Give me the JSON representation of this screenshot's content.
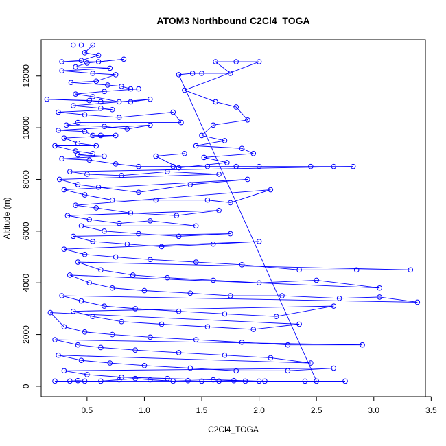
{
  "chart_data": {
    "type": "scatter",
    "title": "ATOM3 Northbound C2Cl4_TOGA",
    "xlabel": "C2Cl4_TOGA",
    "ylabel": "Altitude (m)",
    "xlim": [
      0.1,
      3.45
    ],
    "ylim": [
      -400,
      13400
    ],
    "xticks": [
      0.5,
      1.0,
      1.5,
      2.0,
      2.5,
      3.0,
      3.5
    ],
    "xtick_labels": [
      "0.5",
      "1.0",
      "1.5",
      "2.0",
      "2.5",
      "3.0",
      "3.5"
    ],
    "yticks": [
      0,
      2000,
      4000,
      6000,
      8000,
      10000,
      12000
    ],
    "ytick_labels": [
      "0",
      "2000",
      "4000",
      "6000",
      "8000",
      "10000",
      "12000"
    ],
    "grid": false,
    "legend": "none",
    "style": "points connected by lines (open circles)",
    "color": "#0000ff",
    "series": [
      {
        "points": [
          [
            0.38,
            13200
          ],
          [
            0.45,
            13200
          ],
          [
            0.55,
            13200
          ],
          [
            0.48,
            12900
          ],
          [
            0.6,
            12800
          ],
          [
            0.45,
            12600
          ],
          [
            0.28,
            12550
          ],
          [
            0.6,
            12550
          ],
          [
            0.82,
            12650
          ],
          [
            0.5,
            12500
          ],
          [
            0.4,
            12350
          ],
          [
            0.7,
            12300
          ],
          [
            0.28,
            12200
          ],
          [
            0.55,
            12100
          ],
          [
            0.75,
            12050
          ],
          [
            0.58,
            11800
          ],
          [
            0.36,
            11750
          ],
          [
            0.68,
            11650
          ],
          [
            0.8,
            11600
          ],
          [
            0.88,
            11500
          ],
          [
            0.95,
            11500
          ],
          [
            0.65,
            11400
          ],
          [
            0.4,
            11300
          ],
          [
            0.55,
            11200
          ],
          [
            0.78,
            11000
          ],
          [
            0.15,
            11100
          ],
          [
            0.52,
            11050
          ],
          [
            0.62,
            11000
          ],
          [
            0.88,
            11000
          ],
          [
            1.05,
            11100
          ],
          [
            0.38,
            10850
          ],
          [
            0.62,
            10750
          ],
          [
            0.72,
            10700
          ],
          [
            0.25,
            10600
          ],
          [
            0.48,
            10500
          ],
          [
            0.78,
            10400
          ],
          [
            1.25,
            10600
          ],
          [
            1.32,
            10200
          ],
          [
            0.42,
            10200
          ],
          [
            0.32,
            10100
          ],
          [
            0.65,
            10050
          ],
          [
            0.85,
            9950
          ],
          [
            1.05,
            10100
          ],
          [
            0.25,
            9900
          ],
          [
            0.48,
            9850
          ],
          [
            0.55,
            9700
          ],
          [
            0.62,
            9700
          ],
          [
            0.75,
            9700
          ],
          [
            0.3,
            9600
          ],
          [
            0.42,
            9400
          ],
          [
            0.58,
            9300
          ],
          [
            0.22,
            9300
          ],
          [
            0.4,
            9100
          ],
          [
            0.55,
            9000
          ],
          [
            0.42,
            8950
          ],
          [
            0.65,
            8900
          ],
          [
            0.28,
            8800
          ],
          [
            0.52,
            8750
          ],
          [
            0.75,
            8600
          ],
          [
            0.95,
            8500
          ],
          [
            1.25,
            8500
          ],
          [
            1.55,
            8500
          ],
          [
            1.8,
            8500
          ],
          [
            2.0,
            8500
          ],
          [
            2.45,
            8500
          ],
          [
            2.65,
            8500
          ],
          [
            2.82,
            8500
          ],
          [
            0.35,
            8300
          ],
          [
            0.5,
            8200
          ],
          [
            0.8,
            8150
          ],
          [
            1.2,
            8300
          ],
          [
            1.65,
            8200
          ],
          [
            0.26,
            8000
          ],
          [
            0.42,
            7800
          ],
          [
            0.6,
            7700
          ],
          [
            0.95,
            7500
          ],
          [
            1.4,
            7800
          ],
          [
            1.9,
            8000
          ],
          [
            0.3,
            7600
          ],
          [
            0.48,
            7400
          ],
          [
            0.72,
            7200
          ],
          [
            1.1,
            7200
          ],
          [
            1.55,
            7200
          ],
          [
            1.75,
            7100
          ],
          [
            2.1,
            7600
          ],
          [
            0.4,
            7000
          ],
          [
            0.58,
            6900
          ],
          [
            0.88,
            6700
          ],
          [
            1.28,
            6600
          ],
          [
            1.65,
            6800
          ],
          [
            0.33,
            6600
          ],
          [
            0.52,
            6450
          ],
          [
            0.78,
            6300
          ],
          [
            1.05,
            6400
          ],
          [
            1.45,
            6200
          ],
          [
            0.45,
            6200
          ],
          [
            0.65,
            6000
          ],
          [
            0.95,
            5900
          ],
          [
            1.3,
            5800
          ],
          [
            1.75,
            5900
          ],
          [
            0.38,
            5800
          ],
          [
            0.55,
            5600
          ],
          [
            0.85,
            5500
          ],
          [
            1.15,
            5400
          ],
          [
            1.6,
            5500
          ],
          [
            2.0,
            5600
          ],
          [
            0.3,
            5300
          ],
          [
            0.48,
            5100
          ],
          [
            0.75,
            5000
          ],
          [
            1.05,
            4900
          ],
          [
            1.45,
            4800
          ],
          [
            1.85,
            4700
          ],
          [
            2.35,
            4500
          ],
          [
            2.85,
            4500
          ],
          [
            3.32,
            4500
          ],
          [
            0.42,
            4800
          ],
          [
            0.62,
            4500
          ],
          [
            0.9,
            4300
          ],
          [
            1.2,
            4200
          ],
          [
            1.6,
            4100
          ],
          [
            2.0,
            4000
          ],
          [
            2.5,
            4100
          ],
          [
            3.05,
            3800
          ],
          [
            0.35,
            4300
          ],
          [
            0.52,
            4000
          ],
          [
            0.72,
            3800
          ],
          [
            1.0,
            3700
          ],
          [
            1.4,
            3600
          ],
          [
            1.75,
            3500
          ],
          [
            2.2,
            3500
          ],
          [
            2.7,
            3400
          ],
          [
            3.05,
            3450
          ],
          [
            3.38,
            3250
          ],
          [
            0.28,
            3500
          ],
          [
            0.45,
            3300
          ],
          [
            0.65,
            3100
          ],
          [
            0.92,
            3000
          ],
          [
            1.3,
            2900
          ],
          [
            1.7,
            2800
          ],
          [
            2.15,
            2700
          ],
          [
            2.65,
            3100
          ],
          [
            0.38,
            2900
          ],
          [
            0.55,
            2700
          ],
          [
            0.8,
            2500
          ],
          [
            1.15,
            2400
          ],
          [
            1.55,
            2300
          ],
          [
            1.95,
            2200
          ],
          [
            2.35,
            2400
          ],
          [
            0.18,
            2850
          ],
          [
            0.3,
            2300
          ],
          [
            0.48,
            2100
          ],
          [
            0.72,
            2000
          ],
          [
            1.05,
            1900
          ],
          [
            1.45,
            1800
          ],
          [
            1.85,
            1700
          ],
          [
            2.25,
            1600
          ],
          [
            2.9,
            1600
          ],
          [
            0.22,
            1800
          ],
          [
            0.42,
            1600
          ],
          [
            0.62,
            1500
          ],
          [
            0.92,
            1400
          ],
          [
            1.3,
            1300
          ],
          [
            1.7,
            1200
          ],
          [
            2.1,
            1100
          ],
          [
            2.45,
            900
          ],
          [
            0.25,
            1200
          ],
          [
            0.45,
            1000
          ],
          [
            0.7,
            900
          ],
          [
            1.0,
            800
          ],
          [
            1.4,
            700
          ],
          [
            1.8,
            600
          ],
          [
            2.25,
            600
          ],
          [
            2.65,
            700
          ],
          [
            0.3,
            600
          ],
          [
            0.5,
            450
          ],
          [
            0.8,
            350
          ],
          [
            1.2,
            300
          ],
          [
            1.6,
            250
          ],
          [
            2.0,
            200
          ],
          [
            2.4,
            200
          ],
          [
            2.75,
            200
          ],
          [
            0.22,
            200
          ],
          [
            0.35,
            200
          ],
          [
            0.42,
            220
          ],
          [
            0.48,
            200
          ],
          [
            0.62,
            200
          ],
          [
            0.78,
            250
          ],
          [
            0.92,
            300
          ],
          [
            1.05,
            250
          ],
          [
            1.25,
            200
          ],
          [
            1.38,
            220
          ],
          [
            1.5,
            200
          ],
          [
            1.65,
            200
          ],
          [
            1.78,
            220
          ],
          [
            1.88,
            200
          ],
          [
            2.05,
            200
          ],
          [
            2.5,
            200
          ],
          [
            1.3,
            12050
          ],
          [
            1.42,
            12100
          ],
          [
            1.5,
            12100
          ],
          [
            1.75,
            12100
          ],
          [
            1.62,
            12550
          ],
          [
            1.8,
            12550
          ],
          [
            2.0,
            12550
          ],
          [
            1.35,
            11450
          ],
          [
            1.62,
            11000
          ],
          [
            1.8,
            10800
          ],
          [
            1.9,
            10300
          ],
          [
            1.6,
            10100
          ],
          [
            1.5,
            9700
          ],
          [
            1.7,
            9500
          ],
          [
            1.45,
            9300
          ],
          [
            1.85,
            9200
          ],
          [
            1.95,
            9000
          ],
          [
            1.52,
            8850
          ],
          [
            1.72,
            8650
          ],
          [
            1.3,
            8450
          ],
          [
            1.1,
            8900
          ],
          [
            1.35,
            9000
          ]
        ]
      }
    ]
  }
}
